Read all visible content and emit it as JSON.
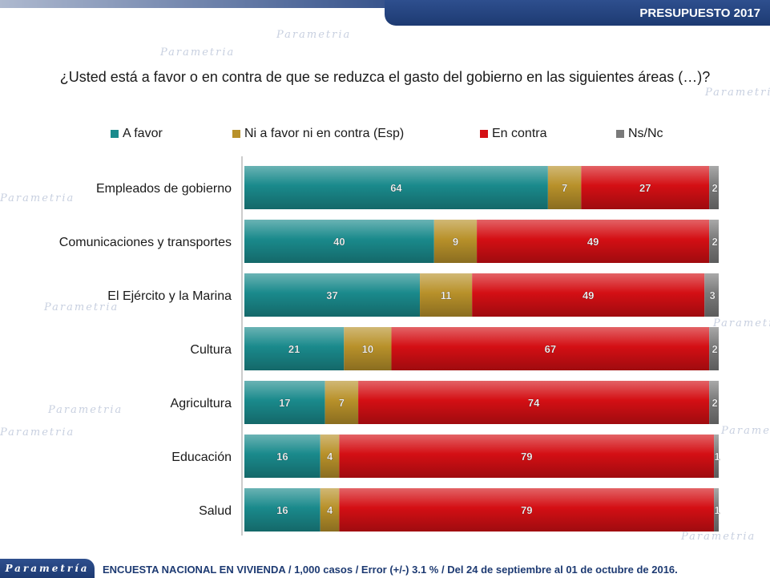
{
  "header": {
    "badge": "PRESUPUESTO 2017",
    "watermark": "Parametria"
  },
  "question": "¿Usted está a favor o en contra de que se reduzca el gasto del gobierno en las siguientes áreas (…)?",
  "footer": {
    "logo": "Parametría",
    "note": "ENCUESTA NACIONAL EN VIVIENDA / 1,000 casos / Error (+/-) 3.1 % / Del 24 de septiembre al 01 de octubre de 2016."
  },
  "chart_data": {
    "type": "bar",
    "orientation": "horizontal",
    "stacked": true,
    "categories": [
      "Empleados de gobierno",
      "Comunicaciones y transportes",
      "El Ejército y la Marina",
      "Cultura",
      "Agricultura",
      "Educación",
      "Salud"
    ],
    "series": [
      {
        "name": "A favor",
        "color": "#1a8a8c",
        "values": [
          64,
          40,
          37,
          21,
          17,
          16,
          16
        ]
      },
      {
        "name": "Ni a favor ni en contra (Esp)",
        "color": "#b8912a",
        "values": [
          7,
          9,
          11,
          10,
          7,
          4,
          4
        ]
      },
      {
        "name": "En contra",
        "color": "#d40f14",
        "values": [
          27,
          49,
          49,
          67,
          74,
          79,
          79
        ]
      },
      {
        "name": "Ns/Nc",
        "color": "#7a7a7a",
        "values": [
          2,
          2,
          3,
          2,
          2,
          1,
          1
        ]
      }
    ],
    "xlim": [
      0,
      100
    ],
    "legend": "top",
    "grid": false
  }
}
